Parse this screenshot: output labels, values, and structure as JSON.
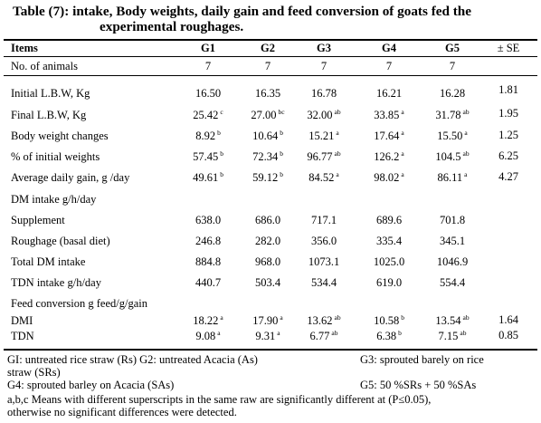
{
  "title": {
    "line1": "Table (7): intake, Body weights, daily gain and feed conversion of goats fed the",
    "line2": "experimental roughages."
  },
  "columns": [
    "Items",
    "G1",
    "G2",
    "G3",
    "G4",
    "G5",
    "± SE"
  ],
  "animals_row": {
    "label": "No. of animals",
    "values": [
      "7",
      "7",
      "7",
      "7",
      "7"
    ]
  },
  "rows": [
    {
      "label": "Initial L.B.W, Kg",
      "values": [
        [
          "16.50",
          ""
        ],
        [
          "16.35",
          ""
        ],
        [
          "16.78",
          ""
        ],
        [
          "16.21",
          ""
        ],
        [
          "16.28",
          ""
        ]
      ],
      "se": "1.81"
    },
    {
      "label": "Final L.B.W, Kg",
      "values": [
        [
          "25.42",
          "c"
        ],
        [
          "27.00",
          "bc"
        ],
        [
          "32.00",
          "ab"
        ],
        [
          "33.85",
          "a"
        ],
        [
          "31.78",
          "ab"
        ]
      ],
      "se": "1.95"
    },
    {
      "label": "Body weight changes",
      "values": [
        [
          "8.92",
          "b"
        ],
        [
          "10.64",
          "b"
        ],
        [
          "15.21",
          "a"
        ],
        [
          "17.64",
          "a"
        ],
        [
          "15.50",
          "a"
        ]
      ],
      "se": "1.25"
    },
    {
      "label": "% of initial weights",
      "values": [
        [
          "57.45",
          "b"
        ],
        [
          "72.34",
          "b"
        ],
        [
          "96.77",
          "ab"
        ],
        [
          "126.2",
          "a"
        ],
        [
          "104.5",
          "ab"
        ]
      ],
      "se": "6.25"
    },
    {
      "label": "Average daily gain, g /day",
      "values": [
        [
          "49.61",
          "b"
        ],
        [
          "59.12",
          "b"
        ],
        [
          "84.52",
          "a"
        ],
        [
          "98.02",
          "a"
        ],
        [
          "86.11",
          "a"
        ]
      ],
      "se": "4.27"
    },
    {
      "label": "DM intake g/h/day",
      "values": [],
      "se": ""
    },
    {
      "label": "Supplement",
      "values": [
        [
          "638.0",
          ""
        ],
        [
          "686.0",
          ""
        ],
        [
          "717.1",
          ""
        ],
        [
          "689.6",
          ""
        ],
        [
          "701.8",
          ""
        ]
      ],
      "se": ""
    },
    {
      "label": "Roughage (basal diet)",
      "values": [
        [
          "246.8",
          ""
        ],
        [
          "282.0",
          ""
        ],
        [
          "356.0",
          ""
        ],
        [
          "335.4",
          ""
        ],
        [
          "345.1",
          ""
        ]
      ],
      "se": ""
    },
    {
      "label": "Total DM intake",
      "values": [
        [
          "884.8",
          ""
        ],
        [
          "968.0",
          ""
        ],
        [
          "1073.1",
          ""
        ],
        [
          "1025.0",
          ""
        ],
        [
          "1046.9",
          ""
        ]
      ],
      "se": ""
    },
    {
      "label": "TDN intake g/h/day",
      "values": [
        [
          "440.7",
          ""
        ],
        [
          "503.4",
          ""
        ],
        [
          "534.4",
          ""
        ],
        [
          "619.0",
          ""
        ],
        [
          "554.4",
          ""
        ]
      ],
      "se": ""
    },
    {
      "label": "Feed conversion g feed/g/gain",
      "values": [],
      "se": ""
    },
    {
      "label": "DMI",
      "values": [
        [
          "18.22",
          "a"
        ],
        [
          "17.90",
          "a"
        ],
        [
          "13.62",
          "ab"
        ],
        [
          "10.58",
          "b"
        ],
        [
          "13.54",
          "ab"
        ]
      ],
      "se": "1.64"
    },
    {
      "label": "TDN",
      "values": [
        [
          "9.08",
          "a"
        ],
        [
          "9.31",
          "a"
        ],
        [
          "6.77",
          "ab"
        ],
        [
          "6.38",
          "b"
        ],
        [
          "7.15",
          "ab"
        ]
      ],
      "se": "0.85"
    }
  ],
  "footnotes": {
    "g1g2": "GI: untreated rice straw (Rs) G2: untreated Acacia (As)",
    "g3": "G3: sprouted barely on rice",
    "g3b": "straw (SRs)",
    "g4": "G4: sprouted barley on Acacia (SAs)",
    "g5": "G5: 50 %SRs + 50 %SAs",
    "sig1": "a,b,c Means with different superscripts in the same raw are significantly different at (P≤0.05),",
    "sig2": "otherwise no significant differences were detected."
  }
}
